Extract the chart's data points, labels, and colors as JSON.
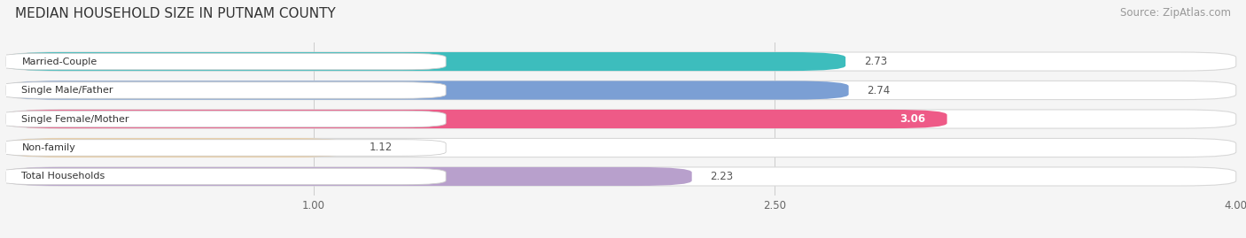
{
  "title": "MEDIAN HOUSEHOLD SIZE IN PUTNAM COUNTY",
  "source": "Source: ZipAtlas.com",
  "categories": [
    "Married-Couple",
    "Single Male/Father",
    "Single Female/Mother",
    "Non-family",
    "Total Households"
  ],
  "values": [
    2.73,
    2.74,
    3.06,
    1.12,
    2.23
  ],
  "bar_colors": [
    "#3DBDBD",
    "#7B9FD4",
    "#EE5A87",
    "#F5C98A",
    "#B8A0CC"
  ],
  "bar_edge_colors": [
    "#3DBDBD",
    "#7B9FD4",
    "#EE5A87",
    "#F5C98A",
    "#B8A0CC"
  ],
  "xlim_data": [
    0,
    4.0
  ],
  "xticks": [
    1.0,
    2.5,
    4.0
  ],
  "background_color": "#f5f5f5",
  "title_fontsize": 11,
  "source_fontsize": 8.5,
  "value_inside": [
    false,
    false,
    true,
    false,
    false
  ]
}
